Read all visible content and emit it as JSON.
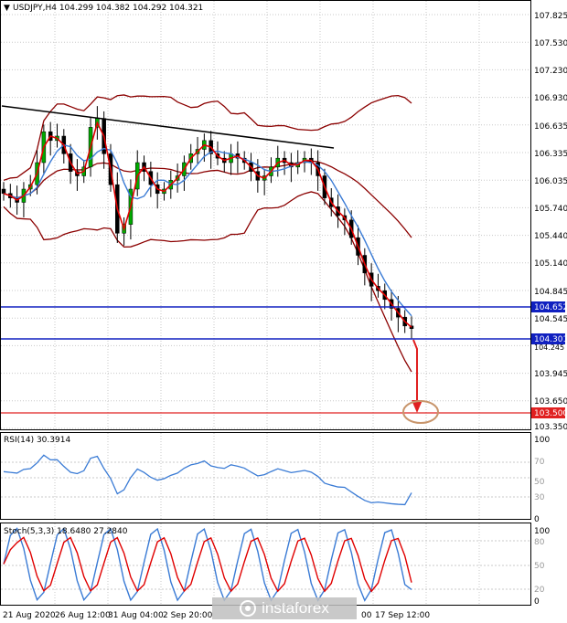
{
  "main": {
    "header": "USDJPY,H4  104.299 104.382 104.292 104.321",
    "price_ticks": [
      "107.825",
      "107.530",
      "107.230",
      "106.930",
      "106.635",
      "106.335",
      "106.035",
      "105.740",
      "105.440",
      "105.140",
      "104.845",
      "104.545",
      "103.945",
      "103.650",
      "103.350"
    ],
    "tag_104652": "104.652",
    "tag_104301": "104.301",
    "tag_103500": "103.500",
    "tag_104245": "104.245"
  },
  "rsi": {
    "header": "RSI(14) 30.3914",
    "ticks": [
      "100",
      "70",
      "50",
      "30",
      "0"
    ]
  },
  "stoch": {
    "header": "Stoch(5,3,3) 18.6480 27.2840",
    "ticks": [
      "100",
      "80",
      "50",
      "20",
      "0"
    ]
  },
  "time_labels": [
    "21 Aug 2020",
    "26 Aug 12:00",
    "31 Aug 04:00",
    "2 Sep 20:00",
    "00",
    "17 Sep 12:00"
  ],
  "watermark": "instaforex",
  "colors": {
    "support": "#1020c0",
    "target": "#e02020",
    "bands": "#8b0000",
    "ma": "#3a7bd5",
    "price": "#e00000",
    "trend": "#000000"
  },
  "chart_data": {
    "type": "line",
    "symbol": "USDJPY",
    "timeframe": "H4",
    "ylim": [
      103.2,
      108.0
    ],
    "close": [
      105.85,
      105.8,
      105.75,
      105.9,
      105.95,
      106.2,
      106.55,
      106.45,
      106.5,
      106.3,
      106.1,
      106.05,
      106.15,
      106.6,
      106.7,
      106.3,
      105.95,
      105.4,
      105.5,
      105.9,
      106.2,
      106.1,
      105.95,
      105.85,
      105.9,
      106.0,
      106.05,
      106.2,
      106.3,
      106.35,
      106.45,
      106.3,
      106.25,
      106.2,
      106.3,
      106.25,
      106.2,
      106.1,
      106.0,
      106.05,
      106.15,
      106.25,
      106.2,
      106.15,
      106.2,
      106.25,
      106.2,
      106.05,
      105.8,
      105.7,
      105.6,
      105.55,
      105.35,
      105.15,
      104.95,
      104.8,
      104.75,
      104.65,
      104.55,
      104.45,
      104.35,
      104.32
    ],
    "trendline": {
      "from": 106.85,
      "to": 106.35
    },
    "levels": [
      104.652,
      104.301,
      103.5
    ],
    "projection_target": 103.5,
    "rsi_value": 30.3914,
    "stoch_values": [
      18.648,
      27.284
    ]
  }
}
